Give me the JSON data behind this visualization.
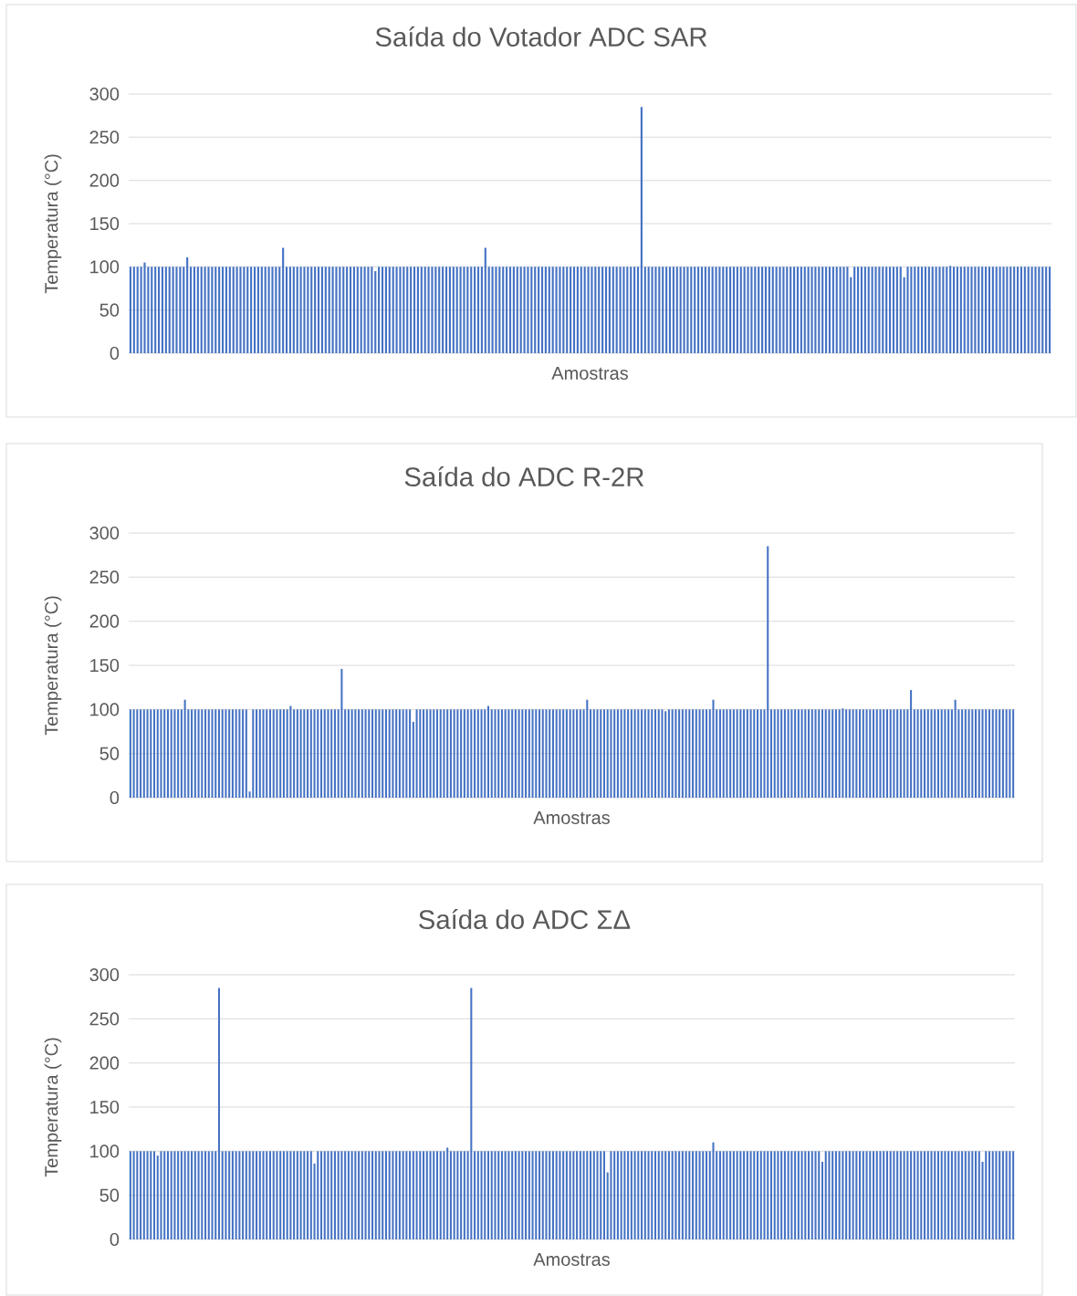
{
  "chart_data": [
    {
      "type": "bar",
      "title": "Saída do Votador ADC SAR",
      "xlabel": "Amostras",
      "ylabel": "Temperatura (°C)",
      "color": "#4472c4",
      "ylim": [
        0,
        300
      ],
      "yticks": [
        0,
        50,
        100,
        150,
        200,
        250,
        300
      ],
      "grid": "y",
      "categories": [
        null,
        null,
        null,
        null,
        null,
        null,
        null,
        null,
        null,
        null,
        null,
        null,
        null,
        null,
        null,
        null,
        null,
        null,
        null,
        null,
        null,
        null,
        null,
        null,
        null,
        null,
        null,
        null,
        null,
        null,
        null,
        null,
        null,
        null,
        null,
        null,
        null,
        null,
        null,
        null,
        null,
        null,
        null,
        null,
        null,
        null,
        null,
        null,
        null,
        null,
        null,
        null,
        null,
        null,
        null,
        null,
        null,
        null,
        null,
        null,
        null,
        null,
        null,
        null,
        null,
        null,
        null,
        null,
        null,
        null,
        null,
        null,
        null,
        null,
        null,
        null,
        null,
        null,
        null,
        null,
        null,
        null,
        null,
        null,
        null,
        null,
        null,
        null,
        null,
        null,
        null,
        null,
        null,
        null,
        null,
        null,
        null,
        null,
        null,
        null,
        null,
        null,
        null,
        null,
        null,
        null,
        null,
        null,
        null,
        null,
        null,
        null,
        null,
        null,
        null,
        null,
        null,
        null,
        null,
        null,
        null,
        null,
        null,
        null,
        null,
        null,
        null,
        null,
        null,
        null,
        null,
        null,
        null,
        null,
        null,
        null,
        null,
        null,
        null,
        null,
        null,
        null,
        null,
        null,
        null,
        null,
        null,
        null,
        null,
        null,
        null,
        null,
        null,
        null,
        null,
        null,
        null,
        null,
        null,
        null,
        null,
        null,
        null,
        null,
        null,
        null,
        null,
        null,
        null,
        null,
        null,
        null,
        null,
        null,
        null,
        null,
        null,
        null,
        null,
        null,
        null,
        null,
        null,
        null,
        null,
        null,
        null,
        null,
        null,
        null,
        null,
        null,
        null,
        null,
        null,
        null,
        null,
        null,
        null,
        null,
        null,
        null,
        null,
        null,
        null,
        null,
        null,
        null,
        null,
        null,
        null,
        null,
        null,
        null,
        null,
        null,
        null,
        null,
        null,
        null,
        null,
        null,
        null,
        null,
        null,
        null,
        null,
        null,
        null,
        null,
        null,
        null,
        null,
        null,
        null,
        null,
        null,
        null,
        null,
        null,
        null,
        null,
        null,
        null,
        null,
        null,
        null,
        null,
        null,
        null,
        null,
        null,
        null,
        null,
        null,
        null,
        null,
        null,
        null,
        null
      ],
      "values": [
        100,
        100,
        100,
        100,
        105,
        100,
        100,
        100,
        100,
        100,
        100,
        100,
        100,
        100,
        100,
        100,
        111,
        100,
        100,
        100,
        100,
        100,
        100,
        100,
        100,
        100,
        100,
        100,
        100,
        100,
        100,
        100,
        100,
        100,
        100,
        100,
        100,
        100,
        100,
        100,
        100,
        100,
        100,
        122,
        100,
        100,
        100,
        100,
        100,
        100,
        100,
        100,
        100,
        100,
        100,
        100,
        100,
        100,
        100,
        100,
        100,
        100,
        100,
        100,
        100,
        100,
        100,
        100,
        100,
        95,
        100,
        100,
        100,
        100,
        100,
        100,
        100,
        100,
        100,
        100,
        100,
        100,
        100,
        100,
        100,
        100,
        100,
        100,
        100,
        100,
        100,
        100,
        100,
        100,
        100,
        100,
        100,
        100,
        100,
        100,
        122,
        100,
        100,
        100,
        100,
        100,
        100,
        100,
        100,
        100,
        100,
        100,
        100,
        100,
        100,
        100,
        100,
        100,
        100,
        100,
        100,
        100,
        100,
        100,
        100,
        100,
        100,
        100,
        100,
        100,
        100,
        100,
        100,
        100,
        100,
        100,
        100,
        100,
        100,
        100,
        100,
        100,
        100,
        100,
        285,
        100,
        100,
        100,
        100,
        100,
        100,
        100,
        100,
        100,
        100,
        100,
        100,
        100,
        100,
        100,
        100,
        100,
        100,
        100,
        100,
        100,
        100,
        100,
        100,
        100,
        100,
        100,
        100,
        100,
        100,
        100,
        100,
        100,
        100,
        100,
        100,
        100,
        100,
        100,
        100,
        100,
        100,
        100,
        100,
        100,
        100,
        100,
        100,
        100,
        100,
        100,
        100,
        100,
        100,
        100,
        100,
        100,
        100,
        88,
        100,
        100,
        100,
        100,
        100,
        100,
        100,
        100,
        100,
        100,
        100,
        100,
        100,
        100,
        88,
        100,
        100,
        100,
        100,
        100,
        100,
        100,
        100,
        100,
        100,
        100,
        100,
        101,
        100,
        100,
        100,
        100,
        100,
        100,
        100,
        100,
        100,
        100,
        100,
        100,
        100,
        100,
        100,
        100,
        100,
        100,
        100,
        100,
        100,
        100,
        100,
        100,
        100,
        100,
        100,
        100
      ]
    },
    {
      "type": "bar",
      "title": "Saída do ADC R-2R",
      "xlabel": "Amostras",
      "ylabel": "Temperatura (°C)",
      "color": "#4472c4",
      "ylim": [
        0,
        300
      ],
      "yticks": [
        0,
        50,
        100,
        150,
        200,
        250,
        300
      ],
      "grid": "y",
      "categories": [
        null,
        null,
        null,
        null,
        null,
        null,
        null,
        null,
        null,
        null,
        null,
        null,
        null,
        null,
        null,
        null,
        null,
        null,
        null,
        null,
        null,
        null,
        null,
        null,
        null,
        null,
        null,
        null,
        null,
        null,
        null,
        null,
        null,
        null,
        null,
        null,
        null,
        null,
        null,
        null,
        null,
        null,
        null,
        null,
        null,
        null,
        null,
        null,
        null,
        null,
        null,
        null,
        null,
        null,
        null,
        null,
        null,
        null,
        null,
        null,
        null,
        null,
        null,
        null,
        null,
        null,
        null,
        null,
        null,
        null,
        null,
        null,
        null,
        null,
        null,
        null,
        null,
        null,
        null,
        null,
        null,
        null,
        null,
        null,
        null,
        null,
        null,
        null,
        null,
        null,
        null,
        null,
        null,
        null,
        null,
        null,
        null,
        null,
        null,
        null,
        null,
        null,
        null,
        null,
        null,
        null,
        null,
        null,
        null,
        null,
        null,
        null,
        null,
        null,
        null,
        null,
        null,
        null,
        null,
        null,
        null,
        null,
        null,
        null,
        null,
        null,
        null,
        null,
        null,
        null,
        null,
        null,
        null,
        null,
        null,
        null,
        null,
        null,
        null,
        null,
        null,
        null,
        null,
        null,
        null,
        null,
        null,
        null,
        null,
        null,
        null,
        null,
        null,
        null,
        null,
        null,
        null,
        null,
        null,
        null,
        null,
        null,
        null,
        null,
        null,
        null,
        null,
        null,
        null,
        null,
        null,
        null,
        null,
        null,
        null,
        null,
        null,
        null,
        null,
        null,
        null,
        null,
        null,
        null,
        null,
        null,
        null,
        null,
        null,
        null,
        null,
        null,
        null,
        null,
        null,
        null,
        null,
        null,
        null,
        null,
        null,
        null,
        null,
        null,
        null,
        null,
        null,
        null,
        null,
        null,
        null,
        null,
        null,
        null,
        null,
        null,
        null,
        null,
        null,
        null,
        null,
        null,
        null,
        null,
        null,
        null,
        null,
        null,
        null,
        null,
        null,
        null,
        null,
        null,
        null,
        null,
        null,
        null,
        null,
        null,
        null,
        null,
        null,
        null,
        null,
        null,
        null,
        null,
        null,
        null,
        null,
        null,
        null,
        null,
        null,
        null,
        null,
        null,
        null,
        null
      ],
      "values": [
        100,
        100,
        100,
        100,
        100,
        100,
        100,
        100,
        100,
        100,
        100,
        100,
        100,
        100,
        100,
        100,
        111,
        100,
        100,
        100,
        100,
        100,
        100,
        100,
        100,
        100,
        100,
        100,
        100,
        100,
        100,
        100,
        100,
        100,
        100,
        7,
        100,
        100,
        100,
        100,
        100,
        100,
        100,
        100,
        100,
        100,
        100,
        104,
        100,
        100,
        100,
        100,
        100,
        100,
        100,
        100,
        100,
        100,
        100,
        100,
        100,
        100,
        146,
        100,
        100,
        100,
        100,
        100,
        100,
        100,
        100,
        100,
        100,
        100,
        100,
        100,
        100,
        100,
        100,
        100,
        100,
        100,
        100,
        86,
        100,
        100,
        100,
        100,
        100,
        100,
        100,
        100,
        100,
        100,
        100,
        100,
        100,
        100,
        100,
        100,
        100,
        100,
        100,
        100,
        100,
        104,
        100,
        100,
        100,
        100,
        100,
        100,
        100,
        100,
        100,
        100,
        100,
        100,
        100,
        100,
        100,
        100,
        100,
        100,
        100,
        100,
        100,
        100,
        100,
        100,
        100,
        100,
        100,
        100,
        111,
        100,
        100,
        100,
        100,
        100,
        100,
        100,
        100,
        100,
        100,
        100,
        100,
        100,
        100,
        100,
        100,
        100,
        100,
        100,
        100,
        100,
        100,
        98,
        100,
        100,
        100,
        100,
        100,
        100,
        100,
        100,
        100,
        100,
        100,
        100,
        100,
        111,
        100,
        100,
        100,
        100,
        100,
        100,
        100,
        100,
        100,
        100,
        100,
        100,
        100,
        100,
        100,
        285,
        100,
        100,
        100,
        100,
        100,
        100,
        100,
        100,
        100,
        100,
        100,
        100,
        100,
        100,
        100,
        100,
        100,
        100,
        100,
        100,
        100,
        101,
        100,
        100,
        100,
        100,
        100,
        100,
        100,
        100,
        100,
        100,
        100,
        100,
        100,
        100,
        100,
        100,
        100,
        100,
        100,
        122,
        100,
        100,
        100,
        100,
        100,
        100,
        100,
        100,
        100,
        100,
        100,
        100,
        111,
        100,
        100,
        100,
        100,
        100,
        100,
        100,
        100,
        100,
        100,
        100,
        100,
        100,
        100,
        100,
        100,
        100
      ]
    },
    {
      "type": "bar",
      "title": "Saída do ADC ΣΔ",
      "xlabel": "Amostras",
      "ylabel": "Temperatura (°C)",
      "color": "#4472c4",
      "ylim": [
        0,
        300
      ],
      "yticks": [
        0,
        50,
        100,
        150,
        200,
        250,
        300
      ],
      "grid": "y",
      "categories": [
        null,
        null,
        null,
        null,
        null,
        null,
        null,
        null,
        null,
        null,
        null,
        null,
        null,
        null,
        null,
        null,
        null,
        null,
        null,
        null,
        null,
        null,
        null,
        null,
        null,
        null,
        null,
        null,
        null,
        null,
        null,
        null,
        null,
        null,
        null,
        null,
        null,
        null,
        null,
        null,
        null,
        null,
        null,
        null,
        null,
        null,
        null,
        null,
        null,
        null,
        null,
        null,
        null,
        null,
        null,
        null,
        null,
        null,
        null,
        null,
        null,
        null,
        null,
        null,
        null,
        null,
        null,
        null,
        null,
        null,
        null,
        null,
        null,
        null,
        null,
        null,
        null,
        null,
        null,
        null,
        null,
        null,
        null,
        null,
        null,
        null,
        null,
        null,
        null,
        null,
        null,
        null,
        null,
        null,
        null,
        null,
        null,
        null,
        null,
        null,
        null,
        null,
        null,
        null,
        null,
        null,
        null,
        null,
        null,
        null,
        null,
        null,
        null,
        null,
        null,
        null,
        null,
        null,
        null,
        null,
        null,
        null,
        null,
        null,
        null,
        null,
        null,
        null,
        null,
        null,
        null,
        null,
        null,
        null,
        null,
        null,
        null,
        null,
        null,
        null,
        null,
        null,
        null,
        null,
        null,
        null,
        null,
        null,
        null,
        null,
        null,
        null,
        null,
        null,
        null,
        null,
        null,
        null,
        null,
        null,
        null,
        null,
        null,
        null,
        null,
        null,
        null,
        null,
        null,
        null,
        null,
        null,
        null,
        null,
        null,
        null,
        null,
        null,
        null,
        null,
        null,
        null,
        null,
        null,
        null,
        null,
        null,
        null,
        null,
        null,
        null,
        null,
        null,
        null,
        null,
        null,
        null,
        null,
        null,
        null,
        null,
        null,
        null,
        null,
        null,
        null,
        null,
        null,
        null,
        null,
        null,
        null,
        null,
        null,
        null,
        null,
        null,
        null,
        null,
        null,
        null,
        null,
        null,
        null,
        null,
        null,
        null,
        null,
        null,
        null,
        null,
        null,
        null,
        null,
        null,
        null,
        null,
        null,
        null,
        null,
        null,
        null,
        null,
        null,
        null,
        null,
        null,
        null,
        null,
        null,
        null,
        null,
        null,
        null,
        null,
        null,
        null,
        null,
        null,
        null
      ],
      "values": [
        100,
        100,
        100,
        100,
        100,
        100,
        100,
        100,
        95,
        100,
        100,
        100,
        100,
        100,
        100,
        100,
        100,
        100,
        100,
        100,
        100,
        100,
        100,
        100,
        100,
        100,
        285,
        100,
        100,
        100,
        100,
        100,
        100,
        100,
        100,
        100,
        100,
        100,
        100,
        100,
        100,
        100,
        100,
        100,
        100,
        100,
        100,
        100,
        100,
        100,
        100,
        100,
        100,
        100,
        86,
        100,
        100,
        100,
        100,
        100,
        100,
        100,
        100,
        100,
        100,
        100,
        100,
        100,
        100,
        100,
        100,
        100,
        100,
        100,
        100,
        100,
        100,
        100,
        100,
        100,
        100,
        100,
        100,
        100,
        100,
        100,
        100,
        100,
        100,
        100,
        100,
        100,
        100,
        104,
        100,
        100,
        100,
        100,
        100,
        100,
        285,
        100,
        100,
        100,
        100,
        100,
        100,
        100,
        100,
        100,
        100,
        100,
        100,
        100,
        100,
        100,
        100,
        100,
        100,
        100,
        100,
        100,
        100,
        100,
        100,
        100,
        100,
        100,
        100,
        100,
        100,
        100,
        100,
        100,
        100,
        100,
        100,
        100,
        100,
        100,
        76,
        100,
        100,
        100,
        100,
        100,
        100,
        100,
        100,
        100,
        100,
        100,
        100,
        100,
        100,
        100,
        100,
        100,
        100,
        100,
        100,
        100,
        100,
        100,
        100,
        100,
        100,
        100,
        100,
        100,
        100,
        110,
        100,
        100,
        100,
        100,
        100,
        100,
        100,
        100,
        100,
        100,
        100,
        100,
        100,
        100,
        100,
        100,
        100,
        100,
        100,
        100,
        100,
        100,
        100,
        100,
        100,
        100,
        100,
        100,
        100,
        100,
        100,
        88,
        100,
        100,
        100,
        100,
        100,
        100,
        100,
        100,
        100,
        100,
        100,
        100,
        100,
        100,
        100,
        100,
        100,
        100,
        100,
        100,
        100,
        100,
        100,
        100,
        100,
        100,
        100,
        100,
        100,
        100,
        100,
        100,
        100,
        100,
        100,
        100,
        100,
        100,
        100,
        100,
        100,
        100,
        100,
        100,
        100,
        100,
        88,
        100,
        100,
        100,
        100,
        100,
        100,
        100,
        100,
        100
      ]
    }
  ]
}
